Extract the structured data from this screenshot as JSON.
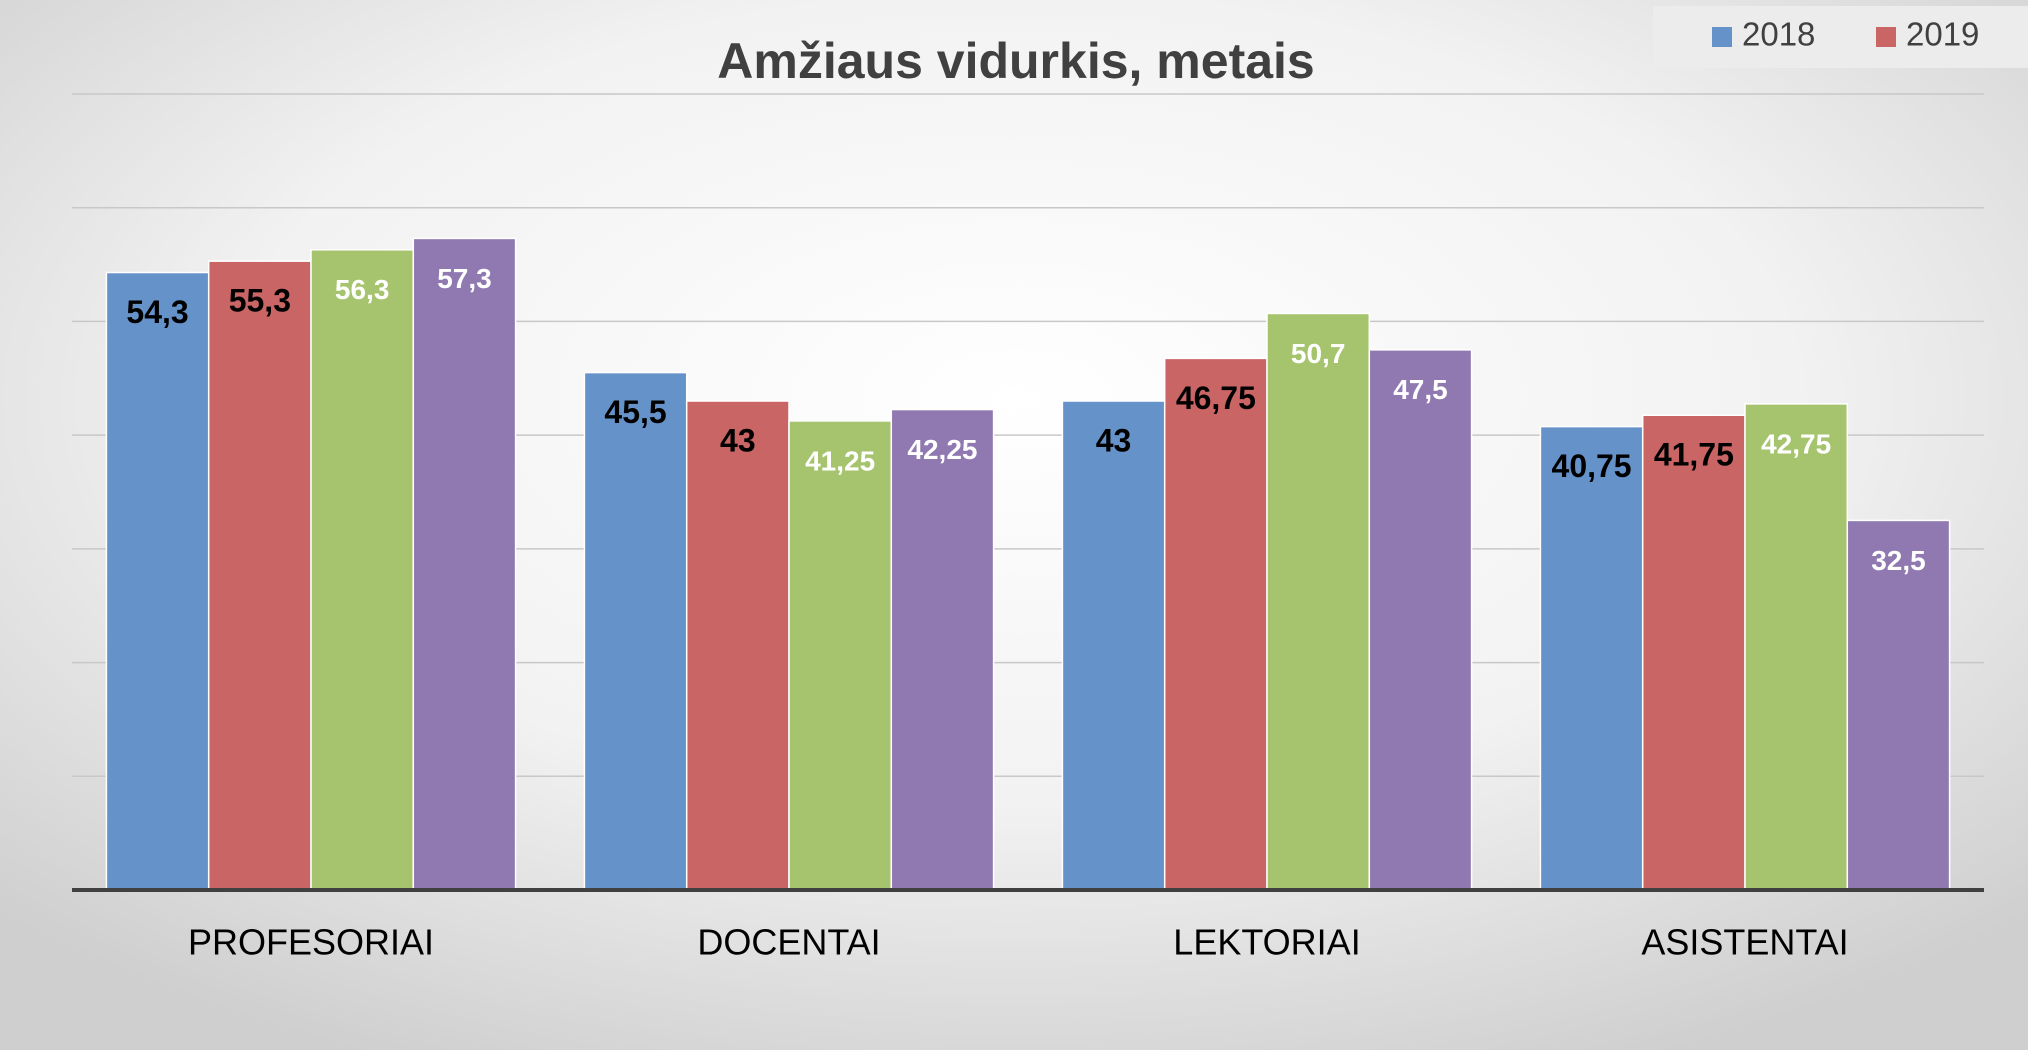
{
  "chart_data": {
    "type": "bar",
    "title": "Amžiaus vidurkis, metais",
    "categories": [
      "PROFESORIAI",
      "DOCENTAI",
      "LEKTORIAI",
      "ASISTENTAI"
    ],
    "series": [
      {
        "name": "2018",
        "color": "#6592c9",
        "label_color": "#000000",
        "values": [
          54.3,
          45.5,
          43,
          40.75
        ],
        "value_labels": [
          "54,3",
          "45,5",
          "43",
          "40,75"
        ]
      },
      {
        "name": "2019",
        "color": "#c96564",
        "label_color": "#000000",
        "values": [
          55.3,
          43,
          46.75,
          41.75
        ],
        "value_labels": [
          "55,3",
          "43",
          "46,75",
          "41,75"
        ]
      },
      {
        "color": "#a6c46e",
        "label_color": "#ffffff",
        "values": [
          56.3,
          41.25,
          50.7,
          42.75
        ],
        "value_labels": [
          "56,3",
          "41,25",
          "50,7",
          "42,75"
        ]
      },
      {
        "color": "#8f79b0",
        "label_color": "#ffffff",
        "values": [
          57.3,
          42.25,
          47.5,
          32.5
        ],
        "value_labels": [
          "57,3",
          "42,25",
          "47,5",
          "32,5"
        ]
      }
    ],
    "ylim": [
      0,
      70
    ],
    "yticks": [
      0,
      10,
      20,
      30,
      40,
      50,
      60,
      70
    ],
    "grid": true,
    "legend": "top-right"
  }
}
